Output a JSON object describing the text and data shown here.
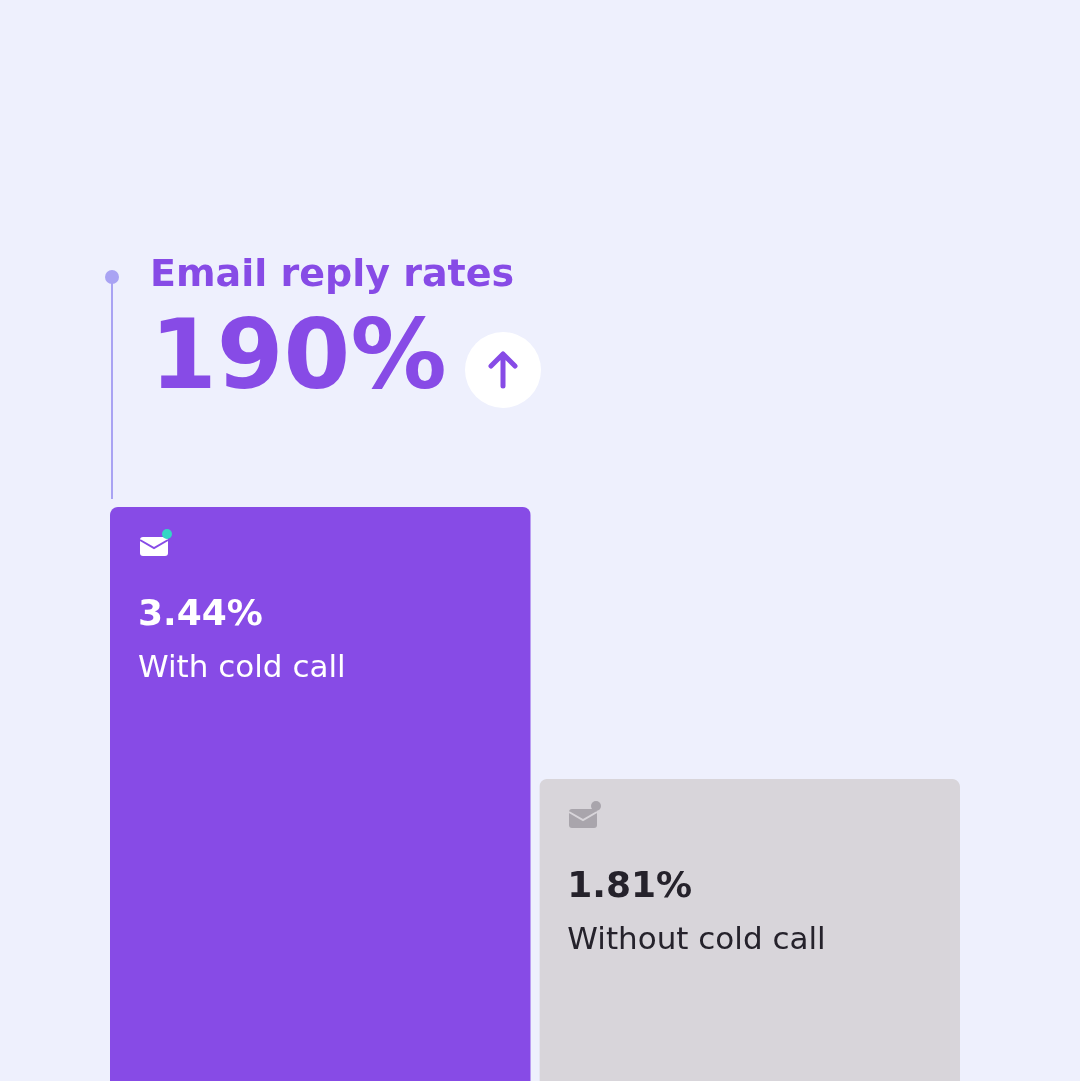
{
  "chart_data": {
    "type": "bar",
    "title": "Email reply rates",
    "subtitle": "190%",
    "categories": [
      "With cold call",
      "Without cold call"
    ],
    "values": [
      3.44,
      1.81
    ],
    "colors": [
      "#874be6",
      "#d8d5da"
    ],
    "value_labels": [
      "3.44%",
      "1.81%"
    ]
  }
}
